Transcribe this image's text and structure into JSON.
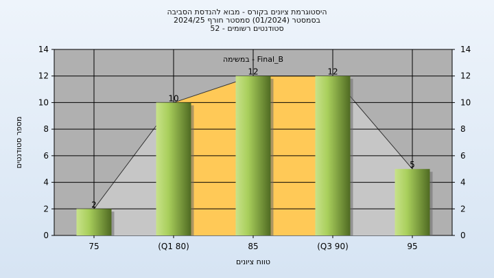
{
  "chart_data": {
    "type": "bar",
    "title_lines": [
      "היסטוגרמת ציונים בקורס - מבוא להנדסת הסביבה",
      "בסמסטר  (01/2024)  סמסטר חורף 2024/25",
      "סטודנטים רשומים - 52"
    ],
    "subtitle": "במשימה - Final_B",
    "xlabel": "טווח ציונים",
    "ylabel": "מספר סטודנטים",
    "categories": [
      "75",
      "(Q1 80)",
      "85",
      "(Q3 90)",
      "95"
    ],
    "values": [
      2,
      10,
      12,
      12,
      5
    ],
    "data_labels": [
      "2",
      "10",
      "12",
      "12",
      "5"
    ],
    "ylim": [
      0,
      14
    ],
    "yticks": [
      0,
      2,
      4,
      6,
      8,
      10,
      12,
      14
    ],
    "grid": true,
    "colors": {
      "plot_bg": "#b0b0b0",
      "bar_light": "#c8e28a",
      "bar_dark": "#4f6a22",
      "iqr_band": "#ffc957",
      "area_fill": "#c6c6c6",
      "grid": "#000000"
    }
  }
}
